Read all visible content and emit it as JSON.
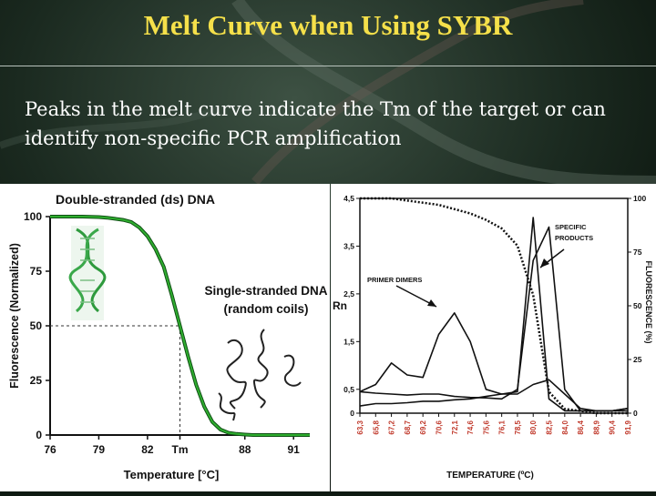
{
  "slide": {
    "title": "Melt Curve when Using SYBR",
    "subtitle": "Peaks in the melt curve indicate the Tm of the target or can identify non-specific PCR amplification"
  },
  "colors": {
    "title": "#f5e04a",
    "curve_green": "#2fae2f",
    "background": "#0f1a12"
  },
  "chart_data": [
    {
      "type": "line",
      "title": "Double-stranded (ds) DNA",
      "xlabel": "Temperature  [°C]",
      "ylabel": "Fluorescence (Normalized)",
      "xlim": [
        76,
        92
      ],
      "ylim": [
        0,
        100
      ],
      "x_ticks": [
        "76",
        "79",
        "82",
        "Tm",
        "88",
        "91"
      ],
      "x_tick_values": [
        76,
        79,
        82,
        84,
        88,
        91
      ],
      "y_ticks": [
        "100",
        "75",
        "50",
        "25",
        "0"
      ],
      "y_tick_values": [
        100,
        75,
        50,
        25,
        0
      ],
      "tm_value": 84,
      "annotation": [
        "Single-stranded DNA",
        "(random coils)"
      ],
      "grid": false,
      "series": [
        {
          "x": [
            76,
            77,
            78,
            79,
            79.5,
            80,
            80.5,
            81,
            81.5,
            82,
            82.5,
            83,
            83.5,
            84,
            84.5,
            85,
            85.5,
            86,
            86.5,
            87,
            87.5,
            88,
            88.5,
            89,
            90,
            91,
            92
          ],
          "values": [
            100,
            100,
            100,
            99.8,
            99.5,
            99,
            98.5,
            97.5,
            95,
            91,
            85,
            77,
            64,
            50,
            36,
            23,
            13,
            6,
            2.5,
            1,
            0.5,
            0.2,
            0,
            0,
            0,
            0,
            0
          ]
        }
      ]
    },
    {
      "type": "line",
      "xlabel": "TEMPERATURE (ºC)",
      "ylabel": "Rn",
      "y2label": "FLUORESCENCE (%)",
      "ylim": [
        0,
        4.5
      ],
      "y_ticks": [
        "4,5",
        "3,5",
        "2,5",
        "1,5",
        "0,5",
        "0"
      ],
      "y_tick_values": [
        4.5,
        3.5,
        2.5,
        1.5,
        0.5,
        0
      ],
      "y2lim": [
        0,
        100
      ],
      "y2_ticks": [
        "100",
        "75",
        "50",
        "25",
        "0"
      ],
      "y2_tick_values": [
        100,
        75,
        50,
        25,
        0
      ],
      "categories": [
        "63,3",
        "65,8",
        "67,2",
        "68,7",
        "69,2",
        "70,6",
        "72,1",
        "74,6",
        "75,6",
        "76,1",
        "78,5",
        "80,0",
        "82,5",
        "84,0",
        "86,4",
        "88,9",
        "90,4",
        "91,9"
      ],
      "annotations": [
        "PRIMER DIMERS",
        "SPECIFIC PRODUCTS"
      ],
      "series": [
        {
          "name": "fluorescence-dotted",
          "axis": "y2",
          "style": "dotted",
          "values": [
            100,
            100,
            100,
            99,
            98,
            97,
            95,
            93,
            90,
            86,
            78,
            55,
            10,
            2,
            1,
            0,
            0,
            0
          ]
        },
        {
          "name": "peak-sample-1",
          "axis": "y",
          "values": [
            0.45,
            0.6,
            1.05,
            0.8,
            0.75,
            1.65,
            2.1,
            1.5,
            0.5,
            0.4,
            0.45,
            4.1,
            0.3,
            0.05,
            0.05,
            0.05,
            0.05,
            0.1
          ]
        },
        {
          "name": "peak-sample-2",
          "axis": "y",
          "values": [
            0.45,
            0.42,
            0.4,
            0.38,
            0.4,
            0.4,
            0.35,
            0.33,
            0.32,
            0.3,
            0.5,
            3.2,
            3.9,
            0.5,
            0.05,
            0.05,
            0.05,
            0.1
          ]
        },
        {
          "name": "peak-sample-3",
          "axis": "y",
          "values": [
            0.15,
            0.2,
            0.2,
            0.22,
            0.25,
            0.25,
            0.28,
            0.3,
            0.35,
            0.4,
            0.4,
            0.6,
            0.7,
            0.4,
            0.1,
            0.05,
            0.05,
            0.05
          ]
        }
      ]
    }
  ]
}
